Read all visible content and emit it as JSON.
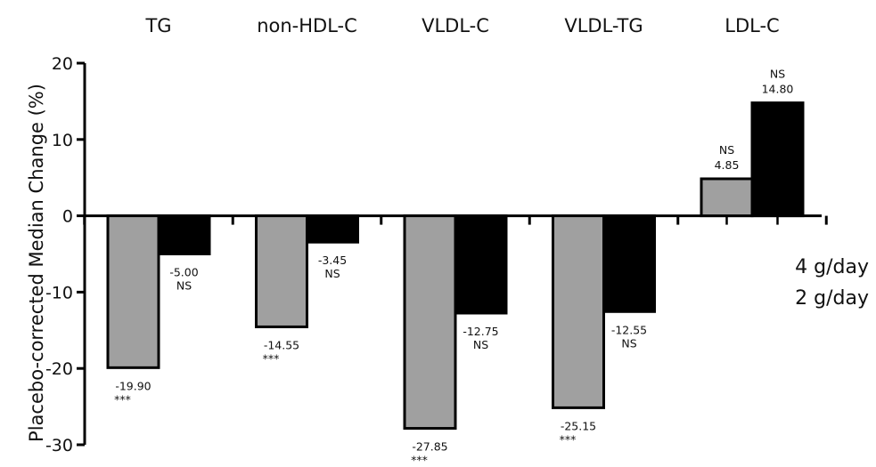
{
  "chart_data": {
    "type": "bar",
    "categories": [
      "TG",
      "non-HDL-C",
      "VLDL-C",
      "VLDL-TG",
      "LDL-C"
    ],
    "series": [
      {
        "name": "4 g/day",
        "color": "#a0a0a0",
        "values": [
          -19.9,
          -14.55,
          -27.85,
          -25.15,
          4.85
        ],
        "value_labels": [
          "-19.90",
          "-14.55",
          "-27.85",
          "-25.15",
          "4.85"
        ],
        "significance": [
          "***",
          "***",
          "***",
          "***",
          "NS"
        ]
      },
      {
        "name": "2 g/day",
        "color": "#000000",
        "values": [
          -5.0,
          -3.45,
          -12.75,
          -12.55,
          14.8
        ],
        "value_labels": [
          "-5.00",
          "-3.45",
          "-12.75",
          "-12.55",
          "14.80"
        ],
        "significance": [
          "NS",
          "NS",
          "NS",
          "NS",
          "NS"
        ]
      }
    ],
    "ylabel": "Placebo-corrected Median Change (%)",
    "ylim": [
      -30,
      20
    ],
    "yticks": [
      20,
      10,
      0,
      -10,
      -20,
      -30
    ],
    "grid": false,
    "legend_position": "right"
  }
}
